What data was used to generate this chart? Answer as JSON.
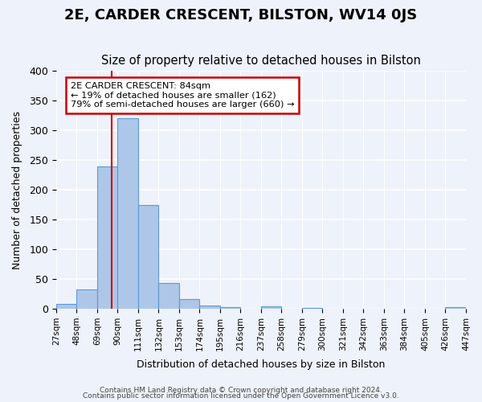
{
  "title": "2E, CARDER CRESCENT, BILSTON, WV14 0JS",
  "subtitle": "Size of property relative to detached houses in Bilston",
  "xlabel": "Distribution of detached houses by size in Bilston",
  "ylabel": "Number of detached properties",
  "bar_values": [
    8,
    32,
    240,
    320,
    175,
    44,
    16,
    5,
    3,
    0,
    4,
    0,
    2,
    0,
    0,
    0,
    0,
    0,
    0,
    3
  ],
  "bar_labels": [
    "27sqm",
    "48sqm",
    "69sqm",
    "90sqm",
    "111sqm",
    "132sqm",
    "153sqm",
    "174sqm",
    "195sqm",
    "216sqm",
    "237sqm",
    "258sqm",
    "279sqm",
    "300sqm",
    "321sqm",
    "342sqm",
    "363sqm",
    "384sqm",
    "405sqm",
    "426sqm",
    "447sqm"
  ],
  "ylim": [
    0,
    400
  ],
  "yticks": [
    0,
    50,
    100,
    150,
    200,
    250,
    300,
    350,
    400
  ],
  "bar_color": "#aec6e8",
  "bar_edge_color": "#5b9bd5",
  "vline_color": "#cc0000",
  "annotation_title": "2E CARDER CRESCENT: 84sqm",
  "annotation_line1": "← 19% of detached houses are smaller (162)",
  "annotation_line2": "79% of semi-detached houses are larger (660) →",
  "annotation_box_color": "#ffffff",
  "annotation_box_edge": "#cc0000",
  "footer1": "Contains HM Land Registry data © Crown copyright and database right 2024.",
  "footer2": "Contains public sector information licensed under the Open Government Licence v3.0.",
  "background_color": "#eef2fa",
  "grid_color": "#ffffff",
  "title_fontsize": 13,
  "subtitle_fontsize": 10.5
}
